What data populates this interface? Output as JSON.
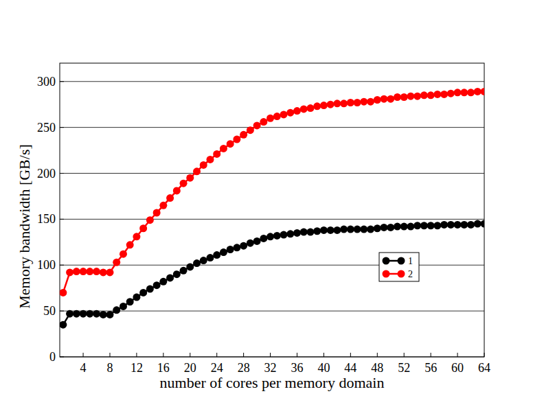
{
  "chart_data": {
    "type": "line",
    "x_label": "number of cores per memory domain",
    "y_label": "Memory bandwidth [GB/s]",
    "x": [
      1,
      2,
      3,
      4,
      5,
      6,
      7,
      8,
      9,
      10,
      11,
      12,
      13,
      14,
      15,
      16,
      17,
      18,
      19,
      20,
      21,
      22,
      23,
      24,
      25,
      26,
      27,
      28,
      29,
      30,
      31,
      32,
      33,
      34,
      35,
      36,
      37,
      38,
      39,
      40,
      41,
      42,
      43,
      44,
      45,
      46,
      47,
      48,
      49,
      50,
      51,
      52,
      53,
      54,
      55,
      56,
      57,
      58,
      59,
      60,
      61,
      62,
      63,
      64
    ],
    "series": [
      {
        "name": "1",
        "color": "#000000",
        "marker": "circle",
        "line_style": "solid",
        "values": [
          35,
          47,
          47,
          47,
          47,
          47,
          46,
          46,
          51,
          55,
          60,
          65,
          70,
          74,
          78,
          82,
          86,
          90,
          94,
          98,
          102,
          105,
          108,
          111,
          114,
          117,
          119,
          121,
          124,
          126,
          129,
          131,
          132,
          133,
          134,
          135,
          136,
          136,
          137,
          138,
          138,
          138,
          139,
          139,
          139,
          139,
          139,
          140,
          141,
          141,
          142,
          142,
          142,
          143,
          143,
          143,
          143,
          144,
          144,
          144,
          144,
          144,
          145,
          145
        ]
      },
      {
        "name": "2",
        "color": "#ff0000",
        "marker": "circle",
        "line_style": "solid",
        "values": [
          70,
          92,
          93,
          93,
          93,
          93,
          92,
          92,
          103,
          112,
          122,
          131,
          140,
          149,
          157,
          165,
          173,
          181,
          189,
          195,
          202,
          209,
          215,
          221,
          227,
          232,
          237,
          242,
          247,
          252,
          256,
          260,
          262,
          264,
          266,
          268,
          270,
          271,
          273,
          274,
          275,
          276,
          276,
          277,
          277,
          278,
          278,
          280,
          281,
          281,
          283,
          283,
          284,
          284,
          285,
          285,
          286,
          286,
          287,
          288,
          288,
          288,
          289,
          289
        ]
      }
    ],
    "xlim": [
      0.5,
      64
    ],
    "ylim": [
      0,
      320
    ],
    "xticks": [
      4,
      8,
      12,
      16,
      20,
      24,
      28,
      32,
      36,
      40,
      44,
      48,
      52,
      56,
      60,
      64
    ],
    "yticks": [
      0,
      50,
      100,
      150,
      200,
      250,
      300
    ],
    "grid": "y",
    "legend": "right"
  }
}
